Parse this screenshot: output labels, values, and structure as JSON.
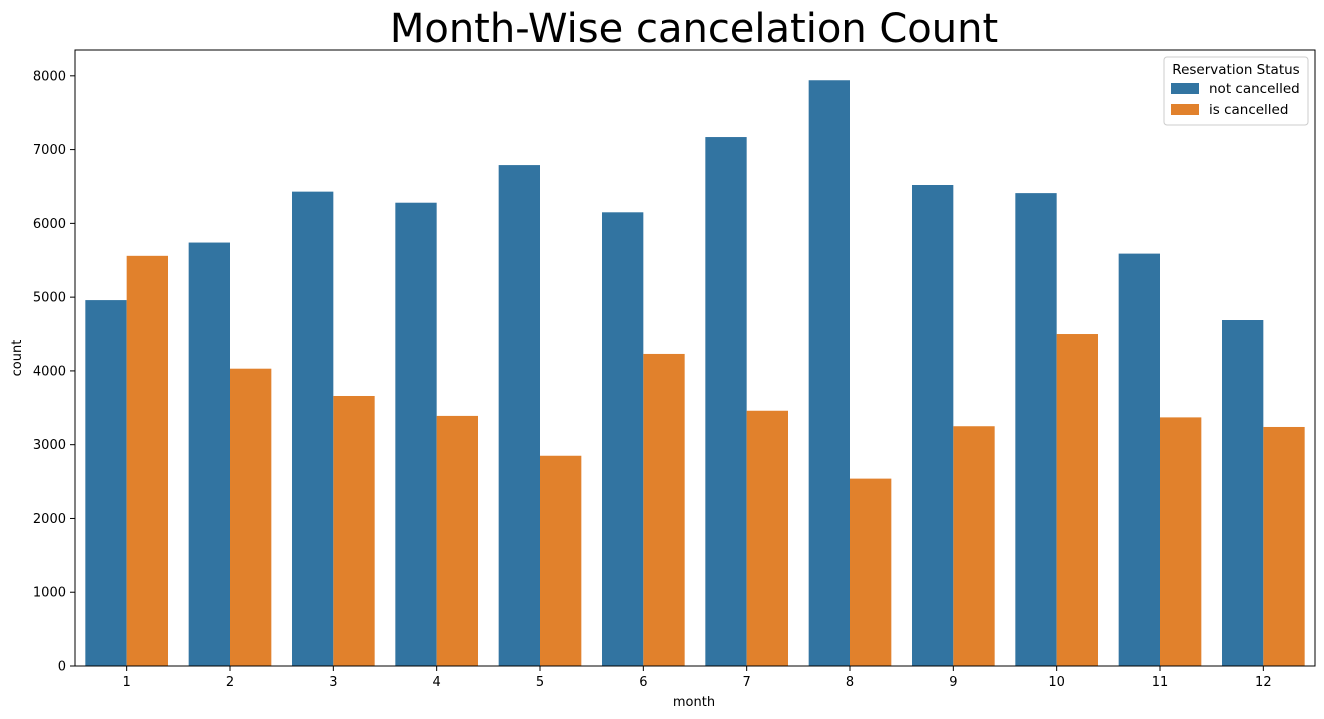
{
  "chart_data": {
    "type": "bar",
    "title": "Month-Wise cancelation Count",
    "xlabel": "month",
    "ylabel": "count",
    "categories": [
      "1",
      "2",
      "3",
      "4",
      "5",
      "6",
      "7",
      "8",
      "9",
      "10",
      "11",
      "12"
    ],
    "series": [
      {
        "name": "not cancelled",
        "color": "#3274a1",
        "values": [
          4960,
          5740,
          6430,
          6280,
          6790,
          6150,
          7170,
          7940,
          6520,
          6410,
          5590,
          4690
        ]
      },
      {
        "name": "is cancelled",
        "color": "#e1812c",
        "values": [
          5560,
          4030,
          3660,
          3390,
          2850,
          4230,
          3460,
          2540,
          3250,
          4500,
          3370,
          3240
        ]
      }
    ],
    "ylim": [
      0,
      8350
    ],
    "yticks": [
      0,
      1000,
      2000,
      3000,
      4000,
      5000,
      6000,
      7000,
      8000
    ],
    "grid": false,
    "legend": {
      "title": "Reservation Status",
      "position": "top-right"
    }
  }
}
